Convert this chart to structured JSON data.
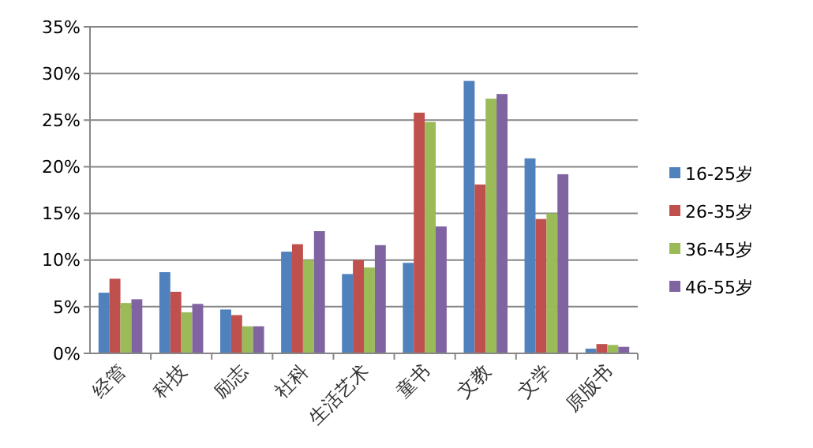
{
  "chart_data": {
    "type": "bar",
    "categories": [
      "经管",
      "科技",
      "励志",
      "社科",
      "生活艺术",
      "童书",
      "文教",
      "文学",
      "原版书"
    ],
    "series": [
      {
        "name": "16-25岁",
        "color": "#4f81bd",
        "values": [
          6.5,
          8.7,
          4.7,
          10.9,
          8.5,
          9.7,
          29.2,
          20.9,
          0.5
        ]
      },
      {
        "name": "26-35岁",
        "color": "#c0504d",
        "values": [
          8.0,
          6.6,
          4.1,
          11.7,
          10.0,
          25.8,
          18.1,
          14.4,
          1.0
        ]
      },
      {
        "name": "36-45岁",
        "color": "#9bbb59",
        "values": [
          5.4,
          4.4,
          2.9,
          10.0,
          9.2,
          24.8,
          27.3,
          15.0,
          0.9
        ]
      },
      {
        "name": "46-55岁",
        "color": "#8064a2",
        "values": [
          5.8,
          5.3,
          2.9,
          13.1,
          11.6,
          13.6,
          27.8,
          19.2,
          0.7
        ]
      }
    ],
    "ylim": [
      0,
      35
    ],
    "yticks": [
      {
        "value": 0,
        "label": "0%"
      },
      {
        "value": 5,
        "label": "5%"
      },
      {
        "value": 10,
        "label": "10%"
      },
      {
        "value": 15,
        "label": "15%"
      },
      {
        "value": 20,
        "label": "20%"
      },
      {
        "value": 25,
        "label": "25%"
      },
      {
        "value": 30,
        "label": "30%"
      },
      {
        "value": 35,
        "label": "35%"
      }
    ],
    "grid": "y",
    "legend": "right"
  }
}
